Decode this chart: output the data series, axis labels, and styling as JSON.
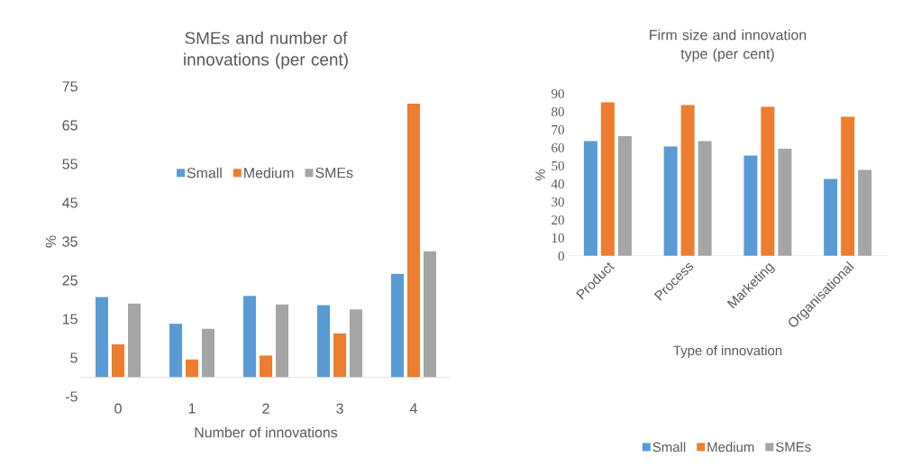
{
  "chart_data": [
    {
      "type": "bar",
      "title": "SMEs and number of innovations (per cent)",
      "xlabel": "Number of innovations",
      "ylabel": "%",
      "categories": [
        "0",
        "1",
        "2",
        "3",
        "4"
      ],
      "series": [
        {
          "name": "Small",
          "color": "#5b9bd5",
          "values": [
            20.7,
            13.8,
            21.0,
            18.6,
            26.7
          ]
        },
        {
          "name": "Medium",
          "color": "#ed7d31",
          "values": [
            8.5,
            4.6,
            5.6,
            11.3,
            70.6
          ]
        },
        {
          "name": "SMEs",
          "color": "#a5a5a5",
          "values": [
            19.0,
            12.5,
            18.8,
            17.5,
            32.5
          ]
        }
      ],
      "ylim": [
        -5,
        75
      ],
      "yticks": [
        -5,
        5,
        15,
        25,
        35,
        45,
        55,
        65,
        75
      ],
      "legend": "top"
    },
    {
      "type": "bar",
      "title": "Firm size and innovation type (per cent)",
      "xlabel": "Type of innovation",
      "ylabel": "%",
      "categories": [
        "Product",
        "Process",
        "Marketing",
        "Organisational"
      ],
      "series": [
        {
          "name": "Small",
          "color": "#5b9bd5",
          "values": [
            63.8,
            60.7,
            55.8,
            42.8
          ]
        },
        {
          "name": "Medium",
          "color": "#ed7d31",
          "values": [
            85.3,
            83.8,
            82.7,
            77.3
          ]
        },
        {
          "name": "SMEs",
          "color": "#a5a5a5",
          "values": [
            66.5,
            63.8,
            59.5,
            47.7
          ]
        }
      ],
      "ylim": [
        0,
        90
      ],
      "yticks": [
        0,
        10,
        20,
        30,
        40,
        50,
        60,
        70,
        80,
        90
      ],
      "legend": "bottom"
    }
  ]
}
